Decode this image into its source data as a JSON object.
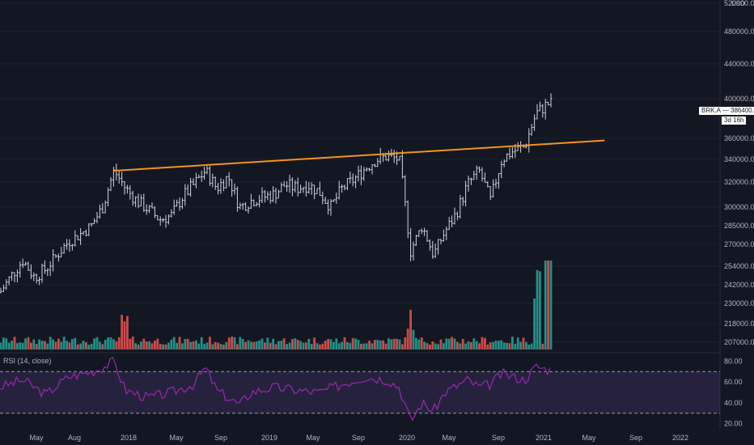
{
  "symbol_tag": {
    "symbol": "BRK.A",
    "price": "386400.00",
    "timer": "3d 16h",
    "currency": "USD"
  },
  "rsi_label": "RSI (14, close)",
  "colors": {
    "background": "#131722",
    "bars": "#d1d4dc",
    "trendline": "#f7931a",
    "vol_up": "#26a69a",
    "vol_down": "#ef5350",
    "rsi_line": "#9c27b0",
    "rsi_band": "#7e57c2"
  },
  "chart_data": [
    {
      "type": "ohlc",
      "symbol": "BRK.A",
      "x_tick_labels": [
        "May",
        "Aug",
        "2018",
        "May",
        "Sep",
        "2019",
        "May",
        "Sep",
        "2020",
        "May",
        "Sep",
        "2021",
        "May",
        "Sep",
        "2022"
      ],
      "y_tick_labels": [
        "520000.00",
        "480000.00",
        "440000.00",
        "400000.00",
        "360000.00",
        "340000.00",
        "320000.00",
        "300000.00",
        "285000.00",
        "270000.00",
        "254000.00",
        "242000.00",
        "230000.00",
        "218000.00",
        "207000.00"
      ],
      "last_price": 386400,
      "x_range": [
        "2017-03",
        "2022-03"
      ],
      "price_path": [
        [
          "2017-03",
          237000
        ],
        [
          "2017-04",
          248000
        ],
        [
          "2017-05",
          258000
        ],
        [
          "2017-06",
          247000
        ],
        [
          "2017-07",
          252000
        ],
        [
          "2017-08",
          262000
        ],
        [
          "2017-09",
          272000
        ],
        [
          "2017-10",
          278000
        ],
        [
          "2017-11",
          285000
        ],
        [
          "2017-12",
          300000
        ],
        [
          "2018-01",
          330000
        ],
        [
          "2018-02",
          315000
        ],
        [
          "2018-03",
          305000
        ],
        [
          "2018-04",
          298000
        ],
        [
          "2018-05",
          290000
        ],
        [
          "2018-06",
          293000
        ],
        [
          "2018-07",
          308000
        ],
        [
          "2018-08",
          318000
        ],
        [
          "2018-09",
          330000
        ],
        [
          "2018-10",
          315000
        ],
        [
          "2018-11",
          325000
        ],
        [
          "2018-12",
          300000
        ],
        [
          "2019-01",
          305000
        ],
        [
          "2019-02",
          308000
        ],
        [
          "2019-03",
          310000
        ],
        [
          "2019-04",
          318000
        ],
        [
          "2019-05",
          315000
        ],
        [
          "2019-06",
          318000
        ],
        [
          "2019-07",
          312000
        ],
        [
          "2019-08",
          300000
        ],
        [
          "2019-09",
          315000
        ],
        [
          "2019-10",
          322000
        ],
        [
          "2019-11",
          332000
        ],
        [
          "2019-12",
          340000
        ],
        [
          "2020-01",
          343000
        ],
        [
          "2020-02",
          340000
        ],
        [
          "2020-03",
          265000
        ],
        [
          "2020-04",
          285000
        ],
        [
          "2020-05",
          262000
        ],
        [
          "2020-06",
          280000
        ],
        [
          "2020-07",
          295000
        ],
        [
          "2020-08",
          318000
        ],
        [
          "2020-09",
          330000
        ],
        [
          "2020-10",
          305000
        ],
        [
          "2020-11",
          340000
        ],
        [
          "2020-12",
          348000
        ],
        [
          "2021-01",
          352000
        ],
        [
          "2021-02",
          385000
        ],
        [
          "2021-03",
          395000
        ]
      ],
      "trendline": {
        "start": [
          "2018-01",
          330000
        ],
        "end": [
          "2021-08",
          358000
        ]
      }
    },
    {
      "type": "bar",
      "name": "Volume",
      "spikes": [
        [
          "2018-02",
          3
        ],
        [
          "2020-03",
          3.5
        ],
        [
          "2021-02",
          8
        ],
        [
          "2021-03",
          14
        ]
      ]
    },
    {
      "type": "line",
      "name": "RSI",
      "y_tick_labels": [
        "80.00",
        "60.00",
        "40.00",
        "20.00"
      ],
      "bands": [
        30,
        70
      ],
      "ylim": [
        15,
        85
      ],
      "rsi_path": [
        [
          "2017-03",
          55
        ],
        [
          "2017-05",
          62
        ],
        [
          "2017-07",
          48
        ],
        [
          "2017-09",
          65
        ],
        [
          "2017-11",
          70
        ],
        [
          "2017-12",
          74
        ],
        [
          "2018-01",
          80
        ],
        [
          "2018-02",
          52
        ],
        [
          "2018-04",
          45
        ],
        [
          "2018-06",
          50
        ],
        [
          "2018-08",
          58
        ],
        [
          "2018-09",
          74
        ],
        [
          "2018-10",
          52
        ],
        [
          "2018-12",
          38
        ],
        [
          "2019-01",
          50
        ],
        [
          "2019-03",
          55
        ],
        [
          "2019-05",
          52
        ],
        [
          "2019-07",
          50
        ],
        [
          "2019-09",
          58
        ],
        [
          "2019-11",
          65
        ],
        [
          "2020-01",
          62
        ],
        [
          "2020-02",
          55
        ],
        [
          "2020-03",
          22
        ],
        [
          "2020-04",
          40
        ],
        [
          "2020-05",
          32
        ],
        [
          "2020-06",
          50
        ],
        [
          "2020-08",
          62
        ],
        [
          "2020-09",
          55
        ],
        [
          "2020-10",
          58
        ],
        [
          "2020-11",
          68
        ],
        [
          "2021-01",
          62
        ],
        [
          "2021-02",
          75
        ],
        [
          "2021-03",
          72
        ]
      ]
    }
  ]
}
